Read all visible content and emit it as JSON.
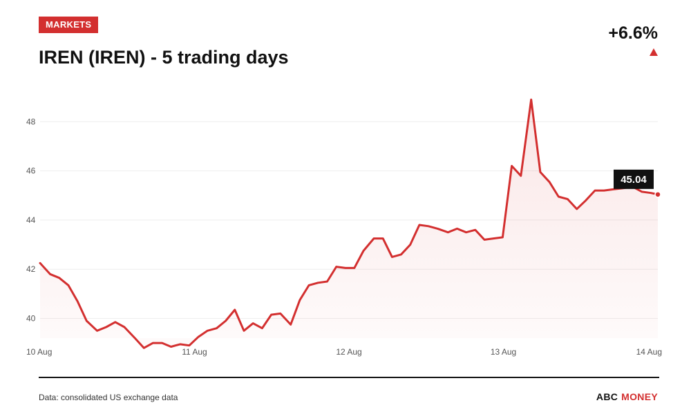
{
  "header": {
    "badge": "MARKETS",
    "title": "IREN (IREN) - 5 trading days",
    "change": "+6.6%"
  },
  "footer": {
    "source": "Data: consolidated US exchange data",
    "brand_primary": "ABC",
    "brand_accent": "MONEY"
  },
  "colors": {
    "accent": "#d32f2f",
    "grid": "#eeeeee",
    "callout_bg": "#111111"
  },
  "chart_data": {
    "type": "area",
    "title": "IREN (IREN) - 5 trading days",
    "xlabel": "",
    "ylabel": "",
    "ylim": [
      39.2,
      49.3
    ],
    "grid": true,
    "yticks": [
      40,
      42,
      44,
      46,
      48
    ],
    "xticks": [
      {
        "label": "10 Aug",
        "x": 0
      },
      {
        "label": "11 Aug",
        "x": 1
      },
      {
        "label": "12 Aug",
        "x": 2
      },
      {
        "label": "13 Aug",
        "x": 3
      },
      {
        "label": "14 Aug",
        "x": 4
      }
    ],
    "last_value_label": "45.04",
    "series": [
      {
        "x": [
          0,
          0.065,
          0.124,
          0.183,
          0.242,
          0.301,
          0.369,
          0.428,
          0.487,
          0.546,
          0.614,
          0.672,
          0.731,
          0.79,
          0.848,
          0.907,
          0.966,
          1.025,
          1.084,
          1.143,
          1.202,
          1.261,
          1.32,
          1.379,
          1.438,
          1.497,
          1.556,
          1.623,
          1.682,
          1.741,
          1.8,
          1.859,
          1.918,
          1.977,
          2.035,
          2.094,
          2.161,
          2.22,
          2.279,
          2.338,
          2.397,
          2.456,
          2.515,
          2.574,
          2.641,
          2.7,
          2.759,
          2.818,
          2.877,
          2.936,
          2.995,
          3.054,
          3.113,
          3.18,
          3.239,
          3.298,
          3.357,
          3.416,
          3.475,
          3.534,
          3.593,
          3.652,
          3.711,
          3.779,
          3.838,
          3.897,
          3.956,
          4.0
        ],
        "values": [
          42.25,
          41.8,
          41.65,
          41.35,
          40.7,
          39.9,
          39.5,
          39.65,
          39.85,
          39.65,
          39.2,
          38.8,
          39.0,
          39.0,
          38.85,
          38.95,
          38.9,
          39.25,
          39.5,
          39.6,
          39.9,
          40.35,
          39.5,
          39.8,
          39.6,
          40.15,
          40.2,
          39.75,
          40.75,
          41.35,
          41.45,
          41.5,
          42.1,
          42.05,
          42.05,
          42.75,
          43.25,
          43.25,
          42.5,
          42.6,
          43.0,
          43.8,
          43.75,
          43.65,
          43.5,
          43.65,
          43.5,
          43.6,
          43.2,
          43.25,
          43.3,
          46.2,
          45.8,
          48.9,
          45.95,
          45.55,
          44.95,
          44.85,
          44.45,
          44.8,
          45.2,
          45.2,
          45.25,
          45.3,
          45.35,
          45.15,
          45.1,
          45.04
        ]
      }
    ]
  }
}
